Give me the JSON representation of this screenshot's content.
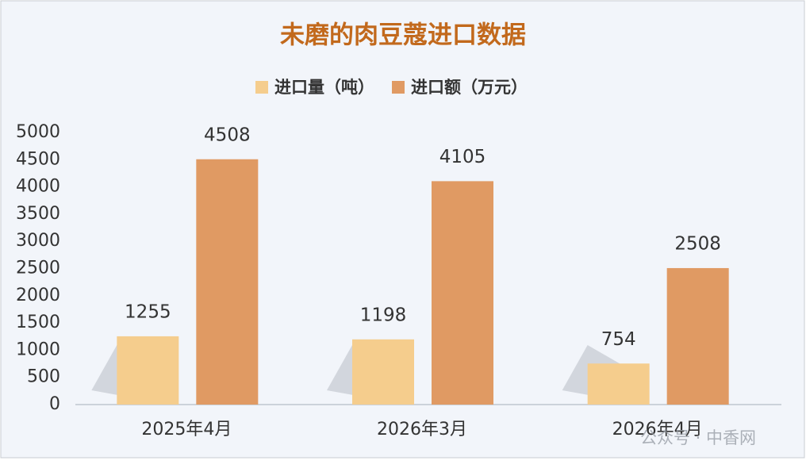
{
  "chart_data": {
    "type": "bar",
    "title": "未磨的肉豆蔻进口数据",
    "categories": [
      "2025年4月",
      "2026年3月",
      "2026年4月"
    ],
    "series": [
      {
        "name": "进口量（吨）",
        "color": "#f5cd8d",
        "values": [
          1255,
          1198,
          754
        ]
      },
      {
        "name": "进口额（万元）",
        "color": "#e09a63",
        "values": [
          4508,
          4105,
          2508
        ]
      }
    ],
    "ylim": [
      0,
      5000
    ],
    "yticks": [
      0,
      500,
      1000,
      1500,
      2000,
      2500,
      3000,
      3500,
      4000,
      4500,
      5000
    ],
    "grid": false,
    "legend": "top"
  },
  "watermark": "公众号 · 中香网"
}
